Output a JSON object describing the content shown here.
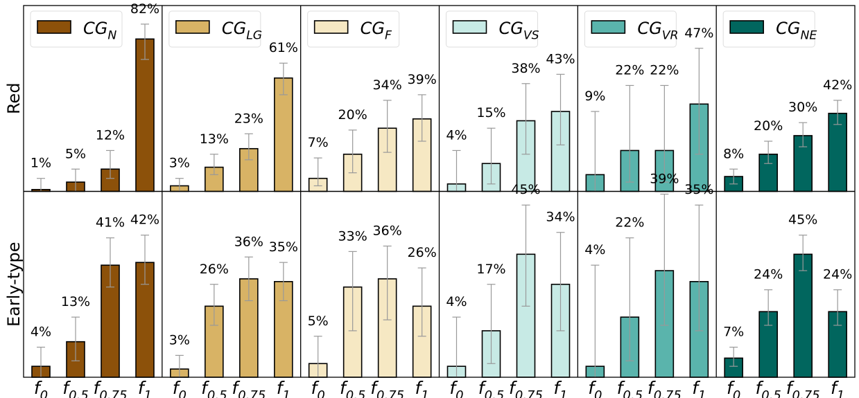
{
  "chart_data": {
    "type": "bar",
    "categories": [
      {
        "base": "f",
        "sub": "0"
      },
      {
        "base": "f",
        "sub": "0.5"
      },
      {
        "base": "f",
        "sub": "0.75"
      },
      {
        "base": "f",
        "sub": "1"
      }
    ],
    "rows": [
      {
        "name": "Red",
        "ylim": [
          0,
          1
        ]
      },
      {
        "name": "Early-type",
        "ylim": [
          0,
          0.68
        ]
      }
    ],
    "groups": [
      {
        "label": "CG",
        "sub": "N",
        "color": "#8c510a"
      },
      {
        "label": "CG",
        "sub": "LG",
        "color": "#d8b365"
      },
      {
        "label": "CG",
        "sub": "F",
        "color": "#f6e8c3"
      },
      {
        "label": "CG",
        "sub": "VS",
        "color": "#c7eae5"
      },
      {
        "label": "CG",
        "sub": "VR",
        "color": "#5ab4ac"
      },
      {
        "label": "CG",
        "sub": "NE",
        "color": "#01665e"
      }
    ],
    "panels": [
      {
        "row": 0,
        "group": 0,
        "values": [
          0.01,
          0.05,
          0.12,
          0.82
        ],
        "labels": [
          "1%",
          "5%",
          "12%",
          "82%"
        ],
        "err": [
          [
            0.0,
            0.07
          ],
          [
            0.0,
            0.12
          ],
          [
            0.07,
            0.22
          ],
          [
            0.71,
            0.9
          ]
        ]
      },
      {
        "row": 0,
        "group": 1,
        "values": [
          0.03,
          0.13,
          0.23,
          0.61
        ],
        "labels": [
          "3%",
          "13%",
          "23%",
          "61%"
        ],
        "err": [
          [
            0.0,
            0.07
          ],
          [
            0.09,
            0.2
          ],
          [
            0.17,
            0.31
          ],
          [
            0.52,
            0.69
          ]
        ]
      },
      {
        "row": 0,
        "group": 2,
        "values": [
          0.07,
          0.2,
          0.34,
          0.39
        ],
        "labels": [
          "7%",
          "20%",
          "34%",
          "39%"
        ],
        "err": [
          [
            0.03,
            0.18
          ],
          [
            0.1,
            0.33
          ],
          [
            0.21,
            0.49
          ],
          [
            0.27,
            0.52
          ]
        ]
      },
      {
        "row": 0,
        "group": 3,
        "values": [
          0.04,
          0.15,
          0.38,
          0.43
        ],
        "labels": [
          "4%",
          "15%",
          "38%",
          "43%"
        ],
        "err": [
          [
            0.0,
            0.22
          ],
          [
            0.04,
            0.34
          ],
          [
            0.2,
            0.58
          ],
          [
            0.25,
            0.63
          ]
        ]
      },
      {
        "row": 0,
        "group": 4,
        "values": [
          0.09,
          0.22,
          0.22,
          0.47
        ],
        "labels": [
          "9%",
          "22%",
          "22%",
          "47%"
        ],
        "err": [
          [
            0.0,
            0.43
          ],
          [
            0.05,
            0.57
          ],
          [
            0.05,
            0.57
          ],
          [
            0.2,
            0.77
          ]
        ]
      },
      {
        "row": 0,
        "group": 5,
        "values": [
          0.08,
          0.2,
          0.3,
          0.42
        ],
        "labels": [
          "8%",
          "20%",
          "30%",
          "42%"
        ],
        "err": [
          [
            0.04,
            0.12
          ],
          [
            0.15,
            0.27
          ],
          [
            0.24,
            0.37
          ],
          [
            0.36,
            0.49
          ]
        ]
      },
      {
        "row": 1,
        "group": 0,
        "values": [
          0.04,
          0.13,
          0.41,
          0.42
        ],
        "labels": [
          "4%",
          "13%",
          "41%",
          "42%"
        ],
        "err": [
          [
            0.0,
            0.11
          ],
          [
            0.06,
            0.22
          ],
          [
            0.33,
            0.51
          ],
          [
            0.34,
            0.52
          ]
        ]
      },
      {
        "row": 1,
        "group": 1,
        "values": [
          0.03,
          0.26,
          0.36,
          0.35
        ],
        "labels": [
          "3%",
          "26%",
          "36%",
          "35%"
        ],
        "err": [
          [
            0.0,
            0.08
          ],
          [
            0.19,
            0.34
          ],
          [
            0.28,
            0.44
          ],
          [
            0.28,
            0.42
          ]
        ]
      },
      {
        "row": 1,
        "group": 2,
        "values": [
          0.05,
          0.33,
          0.36,
          0.26
        ],
        "labels": [
          "5%",
          "33%",
          "36%",
          "26%"
        ],
        "err": [
          [
            0.0,
            0.15
          ],
          [
            0.17,
            0.46
          ],
          [
            0.21,
            0.48
          ],
          [
            0.15,
            0.4
          ]
        ]
      },
      {
        "row": 1,
        "group": 3,
        "values": [
          0.04,
          0.17,
          0.45,
          0.34
        ],
        "labels": [
          "4%",
          "17%",
          "45%",
          "34%"
        ],
        "err": [
          [
            0.0,
            0.22
          ],
          [
            0.05,
            0.34
          ],
          [
            0.26,
            0.63
          ],
          [
            0.17,
            0.53
          ]
        ]
      },
      {
        "row": 1,
        "group": 4,
        "values": [
          0.04,
          0.22,
          0.39,
          0.35
        ],
        "labels": [
          "4%",
          "22%",
          "39%",
          "35%"
        ],
        "err": [
          [
            0.0,
            0.41
          ],
          [
            0.06,
            0.51
          ],
          [
            0.19,
            0.67
          ],
          [
            0.17,
            0.63
          ]
        ]
      },
      {
        "row": 1,
        "group": 5,
        "values": [
          0.07,
          0.24,
          0.45,
          0.24
        ],
        "labels": [
          "7%",
          "24%",
          "45%",
          "24%"
        ],
        "err": [
          [
            0.04,
            0.11
          ],
          [
            0.19,
            0.32
          ],
          [
            0.39,
            0.52
          ],
          [
            0.19,
            0.32
          ]
        ]
      }
    ]
  }
}
